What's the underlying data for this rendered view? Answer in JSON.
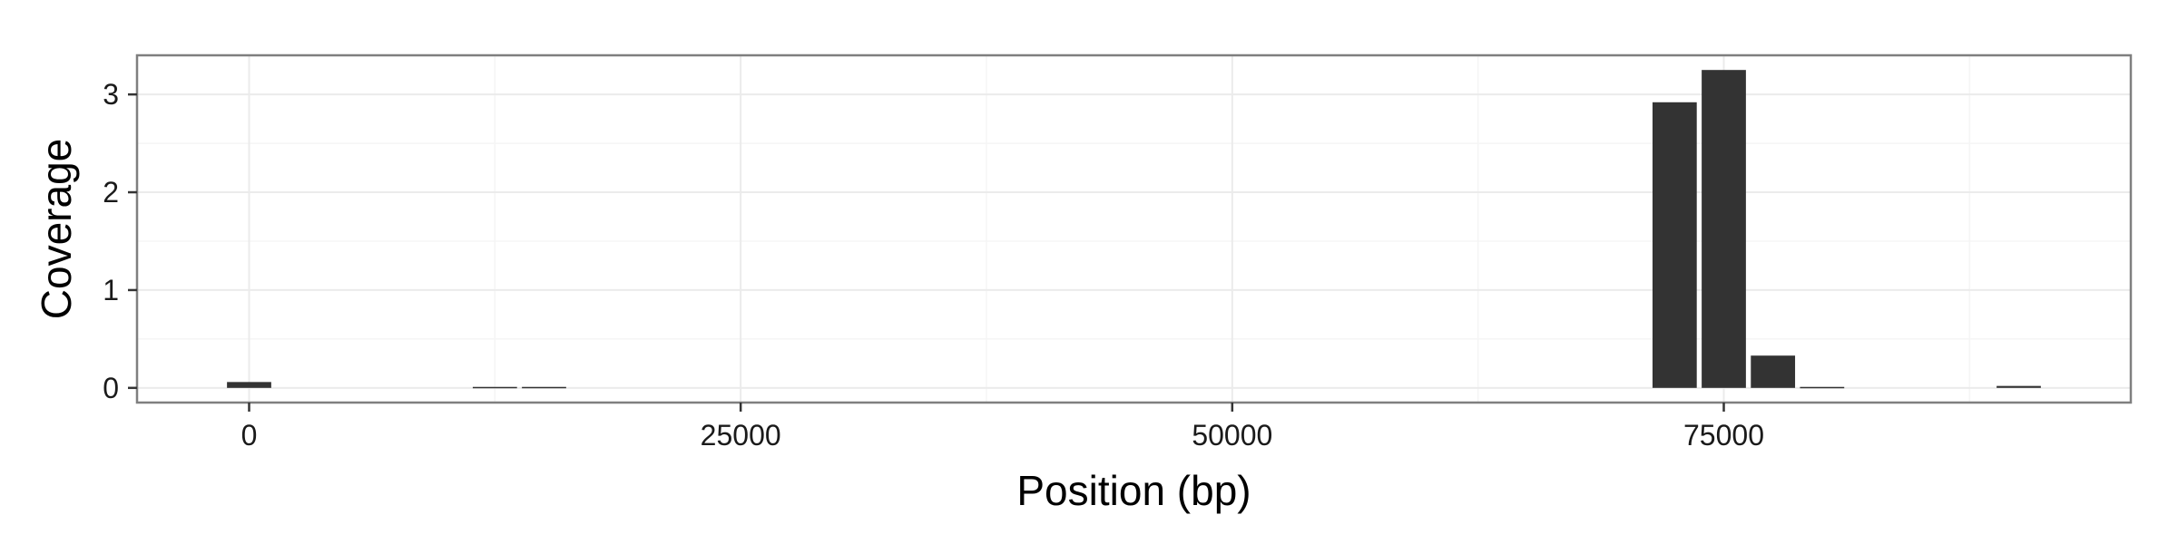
{
  "chart_data": {
    "type": "bar",
    "xlabel": "Position (bp)",
    "ylabel": "Coverage",
    "xlim": [
      -5700,
      95700
    ],
    "ylim": [
      -0.15,
      3.4
    ],
    "x_ticks": [
      0,
      25000,
      50000,
      75000
    ],
    "x_tick_labels": [
      "0",
      "25000",
      "50000",
      "75000"
    ],
    "y_ticks": [
      0,
      1,
      2,
      3
    ],
    "y_tick_labels": [
      "0",
      "1",
      "2",
      "3"
    ],
    "bin_width": 2500,
    "bar_fraction": 0.9,
    "x": [
      0,
      12500,
      15000,
      72500,
      75000,
      77500,
      80000,
      90000
    ],
    "values": [
      0.06,
      0.01,
      0.01,
      2.92,
      3.25,
      0.33,
      0.01,
      0.02
    ],
    "grid": true,
    "legend": "none",
    "colors": {
      "bar": "#333333",
      "panel_border": "#7f7f7f",
      "grid_major": "#ebebeb",
      "grid_minor": "#f5f5f5",
      "tick": "#333333"
    }
  }
}
